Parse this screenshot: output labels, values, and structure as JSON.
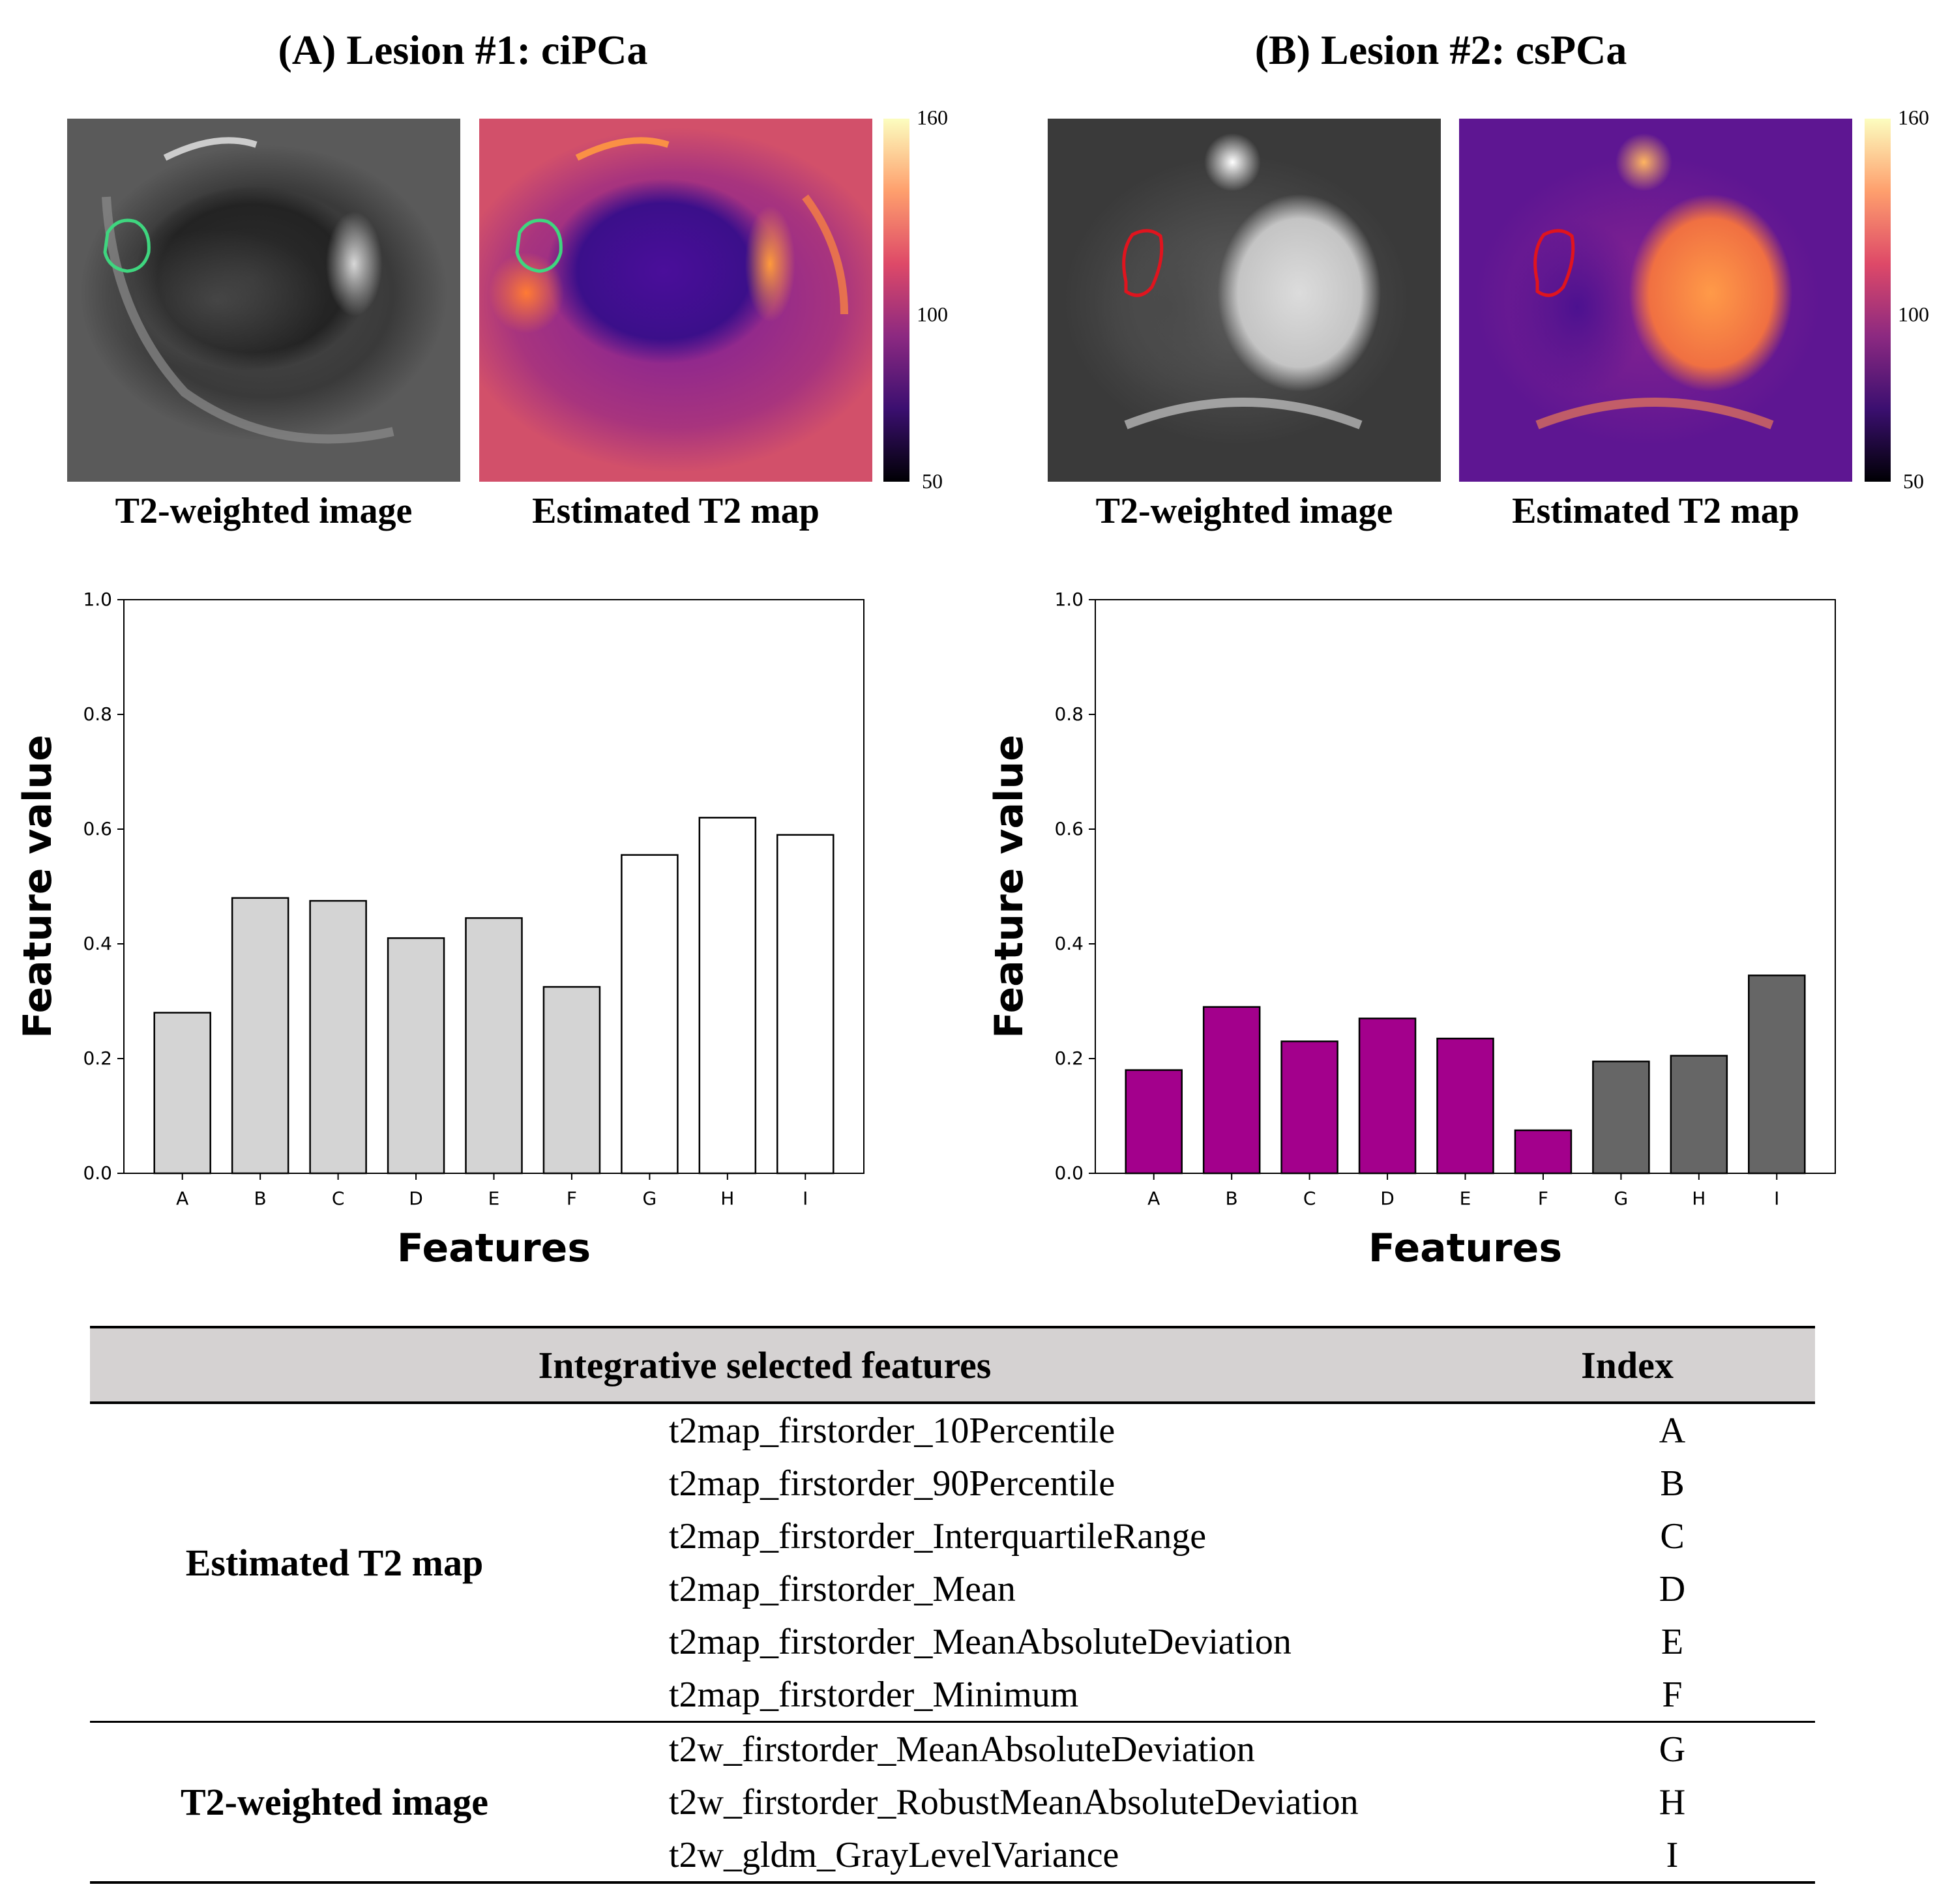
{
  "panels": [
    {
      "title": "(A) Lesion #1: ciPCa",
      "image_captions": [
        "T2-weighted image",
        "Estimated T2 map"
      ],
      "contour_color": "#3fd67f",
      "colorbar": {
        "max_label": "160",
        "mid_label": "100",
        "min_label": "50"
      }
    },
    {
      "title": "(B) Lesion #2: csPCa",
      "image_captions": [
        "T2-weighted image",
        "Estimated T2 map"
      ],
      "contour_color": "#e0141e",
      "colorbar": {
        "max_label": "160",
        "mid_label": "100",
        "min_label": "50"
      }
    }
  ],
  "chart_data": [
    {
      "type": "bar",
      "title": "",
      "xlabel": "Features",
      "ylabel": "Feature value",
      "categories": [
        "A",
        "B",
        "C",
        "D",
        "E",
        "F",
        "G",
        "H",
        "I"
      ],
      "values": [
        0.28,
        0.48,
        0.475,
        0.41,
        0.445,
        0.325,
        0.555,
        0.62,
        0.59
      ],
      "bar_colors": [
        "#d4d4d4",
        "#d4d4d4",
        "#d4d4d4",
        "#d4d4d4",
        "#d4d4d4",
        "#d4d4d4",
        "#ffffff",
        "#ffffff",
        "#ffffff"
      ],
      "ylim": [
        0,
        1.0
      ],
      "yticks": [
        "0.0",
        "0.2",
        "0.4",
        "0.6",
        "0.8",
        "1.0"
      ],
      "grid": false
    },
    {
      "type": "bar",
      "title": "",
      "xlabel": "Features",
      "ylabel": "Feature value",
      "categories": [
        "A",
        "B",
        "C",
        "D",
        "E",
        "F",
        "G",
        "H",
        "I"
      ],
      "values": [
        0.18,
        0.29,
        0.23,
        0.27,
        0.235,
        0.075,
        0.195,
        0.205,
        0.345
      ],
      "bar_colors": [
        "#a3008c",
        "#a3008c",
        "#a3008c",
        "#a3008c",
        "#a3008c",
        "#a3008c",
        "#666666",
        "#666666",
        "#666666"
      ],
      "ylim": [
        0,
        1.0
      ],
      "yticks": [
        "0.0",
        "0.2",
        "0.4",
        "0.6",
        "0.8",
        "1.0"
      ],
      "grid": false
    }
  ],
  "table": {
    "header_features": "Integrative selected features",
    "header_index": "Index",
    "groups": [
      {
        "name": "Estimated T2 map",
        "rows": [
          {
            "feature": "t2map_firstorder_10Percentile",
            "index": "A"
          },
          {
            "feature": "t2map_firstorder_90Percentile",
            "index": "B"
          },
          {
            "feature": "t2map_firstorder_InterquartileRange",
            "index": "C"
          },
          {
            "feature": "t2map_firstorder_Mean",
            "index": "D"
          },
          {
            "feature": "t2map_firstorder_MeanAbsoluteDeviation",
            "index": "E"
          },
          {
            "feature": "t2map_firstorder_Minimum",
            "index": "F"
          }
        ]
      },
      {
        "name": "T2-weighted image",
        "rows": [
          {
            "feature": "t2w_firstorder_MeanAbsoluteDeviation",
            "index": "G"
          },
          {
            "feature": "t2w_firstorder_RobustMeanAbsoluteDeviation",
            "index": "H"
          },
          {
            "feature": "t2w_gldm_GrayLevelVariance",
            "index": "I"
          }
        ]
      }
    ]
  }
}
